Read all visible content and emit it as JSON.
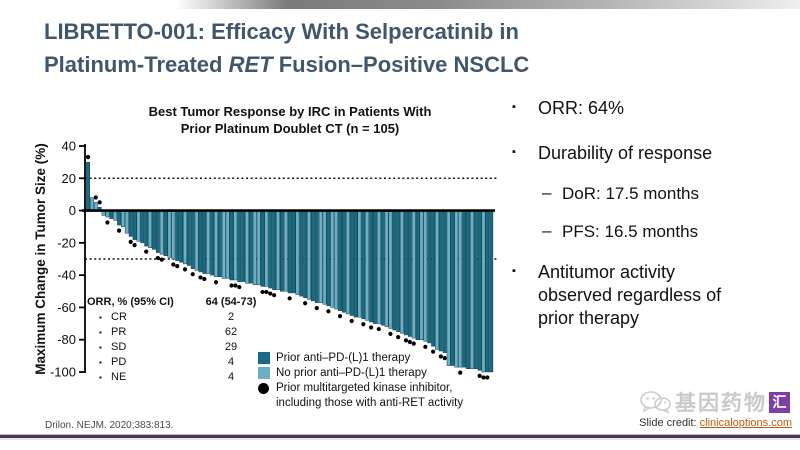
{
  "slide": {
    "title": {
      "line1": "LIBRETTO-001: Efficacy With Selpercatinib in",
      "line2_pre": "Platinum-Treated ",
      "line2_italic": "RET",
      "line2_post": " Fusion–Positive NSCLC"
    }
  },
  "chart_data": {
    "type": "bar",
    "subtype": "waterfall",
    "title_line1": "Best Tumor Response by IRC in Patients With",
    "title_line2": "Prior Platinum Doublet CT (n = 105)",
    "ylabel": "Maximum Change in Tumor Size (%)",
    "ylim": [
      -100,
      40
    ],
    "yticks": [
      40,
      20,
      0,
      -20,
      -40,
      -60,
      -80,
      -100
    ],
    "reference_lines": [
      20,
      -30
    ],
    "n": 105,
    "bar_encoding": "[max_change_pct, group d=prior_antiPD(L)1 l=no_prior, mki_dot 1/0]",
    "bars": [
      [
        30,
        "d",
        1
      ],
      [
        8,
        "l",
        0
      ],
      [
        5,
        "l",
        1
      ],
      [
        2,
        "d",
        1
      ],
      [
        -3,
        "l",
        0
      ],
      [
        -4,
        "l",
        1
      ],
      [
        -5,
        "d",
        0
      ],
      [
        -6,
        "l",
        0
      ],
      [
        -9,
        "d",
        1
      ],
      [
        -10,
        "l",
        0
      ],
      [
        -14,
        "l",
        0
      ],
      [
        -16,
        "d",
        1
      ],
      [
        -18,
        "d",
        1
      ],
      [
        -19,
        "l",
        0
      ],
      [
        -20,
        "d",
        0
      ],
      [
        -22,
        "d",
        1
      ],
      [
        -23,
        "l",
        0
      ],
      [
        -24,
        "d",
        0
      ],
      [
        -26,
        "d",
        1
      ],
      [
        -27,
        "l",
        1
      ],
      [
        -28,
        "d",
        0
      ],
      [
        -29,
        "l",
        0
      ],
      [
        -30,
        "l",
        1
      ],
      [
        -31,
        "d",
        1
      ],
      [
        -32,
        "d",
        0
      ],
      [
        -33,
        "l",
        1
      ],
      [
        -34,
        "d",
        0
      ],
      [
        -36,
        "d",
        1
      ],
      [
        -37,
        "l",
        0
      ],
      [
        -38,
        "d",
        1
      ],
      [
        -39,
        "d",
        1
      ],
      [
        -39,
        "l",
        0
      ],
      [
        -40,
        "d",
        0
      ],
      [
        -41,
        "l",
        1
      ],
      [
        -41,
        "d",
        0
      ],
      [
        -42,
        "l",
        0
      ],
      [
        -42,
        "l",
        0
      ],
      [
        -43,
        "d",
        1
      ],
      [
        -43,
        "l",
        1
      ],
      [
        -44,
        "d",
        1
      ],
      [
        -44,
        "d",
        0
      ],
      [
        -45,
        "l",
        0
      ],
      [
        -45,
        "d",
        0
      ],
      [
        -46,
        "l",
        0
      ],
      [
        -46,
        "l",
        0
      ],
      [
        -47,
        "d",
        1
      ],
      [
        -47,
        "l",
        1
      ],
      [
        -48,
        "d",
        1
      ],
      [
        -49,
        "d",
        1
      ],
      [
        -49,
        "l",
        0
      ],
      [
        -50,
        "d",
        0
      ],
      [
        -50,
        "l",
        0
      ],
      [
        -51,
        "d",
        1
      ],
      [
        -51,
        "d",
        0
      ],
      [
        -52,
        "l",
        0
      ],
      [
        -53,
        "d",
        0
      ],
      [
        -54,
        "d",
        1
      ],
      [
        -55,
        "l",
        0
      ],
      [
        -56,
        "d",
        0
      ],
      [
        -57,
        "d",
        1
      ],
      [
        -57,
        "l",
        0
      ],
      [
        -58,
        "l",
        0
      ],
      [
        -59,
        "d",
        1
      ],
      [
        -60,
        "l",
        0
      ],
      [
        -61,
        "l",
        0
      ],
      [
        -62,
        "d",
        1
      ],
      [
        -63,
        "d",
        0
      ],
      [
        -64,
        "l",
        0
      ],
      [
        -65,
        "d",
        1
      ],
      [
        -66,
        "d",
        0
      ],
      [
        -66,
        "l",
        0
      ],
      [
        -67,
        "d",
        1
      ],
      [
        -68,
        "l",
        0
      ],
      [
        -69,
        "d",
        1
      ],
      [
        -70,
        "d",
        0
      ],
      [
        -70,
        "l",
        1
      ],
      [
        -71,
        "d",
        0
      ],
      [
        -72,
        "l",
        0
      ],
      [
        -73,
        "l",
        1
      ],
      [
        -74,
        "d",
        0
      ],
      [
        -75,
        "d",
        1
      ],
      [
        -76,
        "l",
        0
      ],
      [
        -77,
        "d",
        1
      ],
      [
        -78,
        "d",
        1
      ],
      [
        -79,
        "l",
        1
      ],
      [
        -80,
        "d",
        0
      ],
      [
        -80,
        "l",
        0
      ],
      [
        -81,
        "l",
        1
      ],
      [
        -82,
        "d",
        0
      ],
      [
        -84,
        "d",
        1
      ],
      [
        -86,
        "l",
        0
      ],
      [
        -87,
        "d",
        1
      ],
      [
        -88,
        "d",
        1
      ],
      [
        -96,
        "l",
        0
      ],
      [
        -96,
        "d",
        0
      ],
      [
        -97,
        "l",
        0
      ],
      [
        -97,
        "l",
        1
      ],
      [
        -97,
        "d",
        0
      ],
      [
        -98,
        "d",
        0
      ],
      [
        -98,
        "l",
        0
      ],
      [
        -98,
        "d",
        0
      ],
      [
        -99,
        "d",
        1
      ],
      [
        -100,
        "l",
        1
      ],
      [
        -100,
        "d",
        1
      ],
      [
        -100,
        "d",
        0
      ]
    ]
  },
  "orr_table": {
    "header_label": "ORR, % (95% CI)",
    "header_value": "64 (54-73)",
    "bullet": "▪",
    "rows": [
      {
        "label": "CR",
        "value": "2"
      },
      {
        "label": "PR",
        "value": "62"
      },
      {
        "label": "SD",
        "value": "29"
      },
      {
        "label": "PD",
        "value": "4"
      },
      {
        "label": "NE",
        "value": "4"
      }
    ]
  },
  "legend": {
    "items": [
      {
        "swatch": "dark-square",
        "label": "Prior anti–PD-(L)1 therapy"
      },
      {
        "swatch": "light-square",
        "label": "No prior anti–PD-(L)1 therapy"
      },
      {
        "swatch": "black-dot",
        "label": "Prior multitargeted kinase inhibitor,",
        "label2": "including those with anti-RET activity"
      }
    ]
  },
  "bullets": {
    "marker": "▪",
    "dash": "–",
    "items": [
      {
        "level": 1,
        "text": "ORR: 64%"
      },
      {
        "level": 1,
        "text": "Durability of response"
      },
      {
        "level": 2,
        "text": "DoR: 17.5 months"
      },
      {
        "level": 2,
        "text": "PFS: 16.5 months"
      },
      {
        "level": 1,
        "text": "Antitumor activity observed regardless of prior therapy"
      }
    ]
  },
  "footer": {
    "citation": "Drilon. NEJM. 2020;383:813.",
    "credit_prefix": "Slide credit: ",
    "credit_link": "clinicaloptions.com"
  },
  "watermark": {
    "text": "基因药物",
    "badge": "汇"
  },
  "colors": {
    "title": "#40576b",
    "bar_dark": "#196b82",
    "bar_light": "#6cafc6",
    "bar_outline": "#0f3e4d",
    "link": "#c55a11",
    "watermark_purple": "#7d3ea8"
  }
}
